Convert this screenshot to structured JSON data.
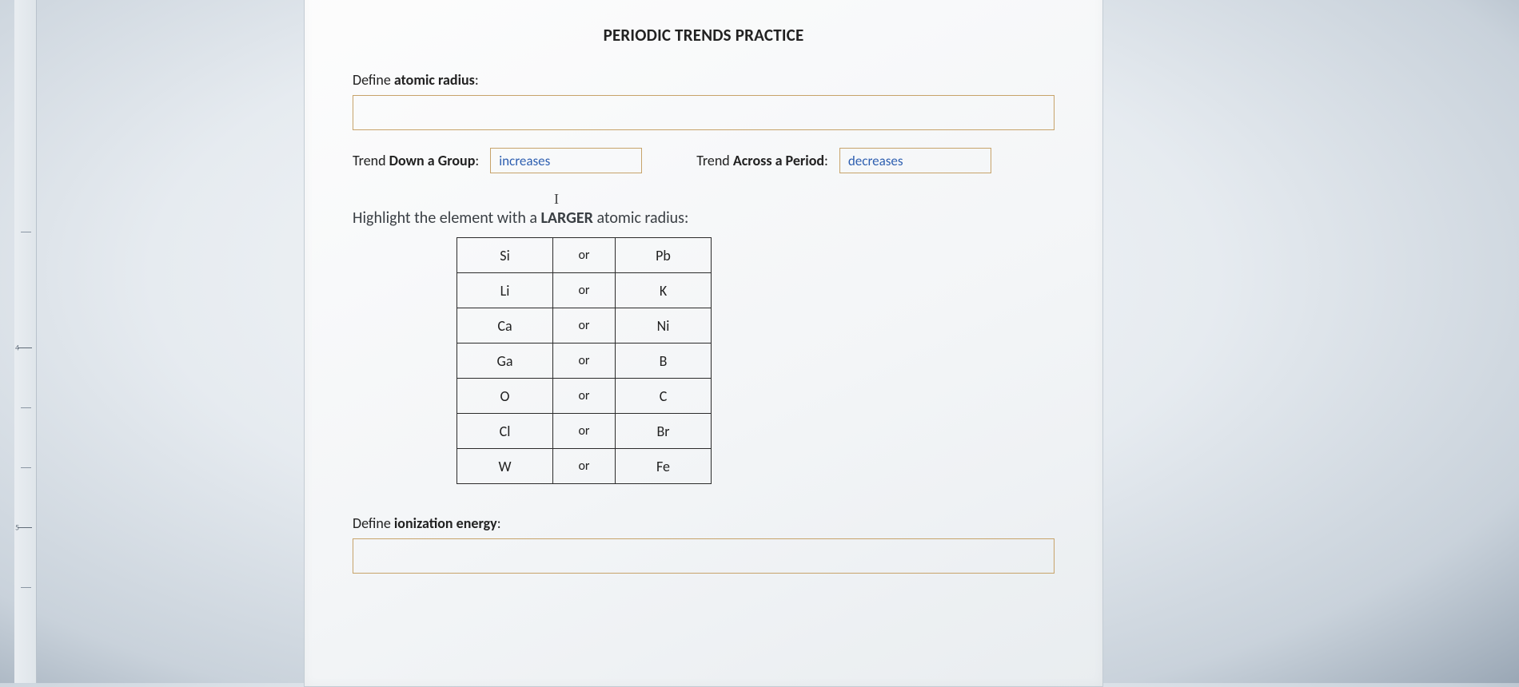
{
  "title": "PERIODIC TRENDS PRACTICE",
  "define_atomic_radius": {
    "label_prefix": "Define ",
    "label_bold": "atomic radius",
    "label_suffix": ":",
    "value": ""
  },
  "trend_group": {
    "label_prefix": "Trend ",
    "label_bold": "Down a Group",
    "label_suffix": ":",
    "value": "increases"
  },
  "trend_period": {
    "label_prefix": "Trend ",
    "label_bold": "Across a Period",
    "label_suffix": ":",
    "value": "decreases"
  },
  "instruction": {
    "prefix": "Highlight the element with a ",
    "bold": "LARGER",
    "suffix": " atomic radius:"
  },
  "pairs": [
    {
      "a": "Si",
      "or": "or",
      "b": "Pb"
    },
    {
      "a": "Li",
      "or": "or",
      "b": "K"
    },
    {
      "a": "Ca",
      "or": "or",
      "b": "Ni"
    },
    {
      "a": "Ga",
      "or": "or",
      "b": "B"
    },
    {
      "a": "O",
      "or": "or",
      "b": "C"
    },
    {
      "a": "Cl",
      "or": "or",
      "b": "Br"
    },
    {
      "a": "W",
      "or": "or",
      "b": "Fe"
    }
  ],
  "define_ionization": {
    "label_prefix": "Define ",
    "label_bold": "ionization energy",
    "label_suffix": ":",
    "value": ""
  },
  "colors": {
    "input_border": "#c7a36a",
    "table_border": "#2b2b2b",
    "link_blue": "#2e5fb0"
  }
}
